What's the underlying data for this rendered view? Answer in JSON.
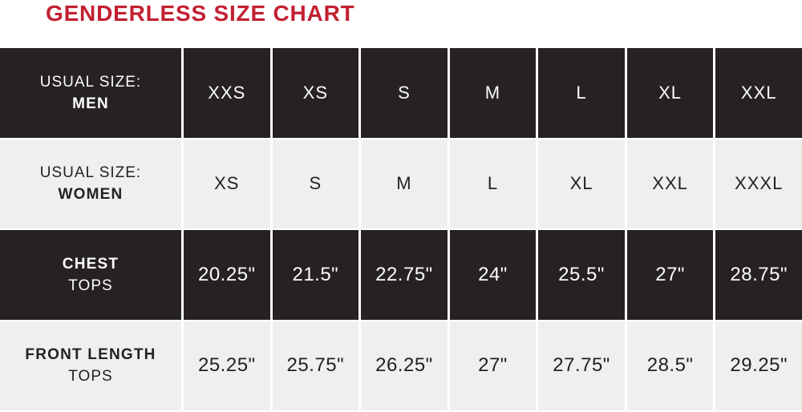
{
  "page": {
    "title": "GENDERLESS SIZE CHART"
  },
  "colors": {
    "title_red": "#c22032",
    "dark_cell": "#262223",
    "light_cell": "#f0efed",
    "gap_white": "#ffffff",
    "dark_text": "#242122",
    "light_text": "#fcfcfc"
  },
  "chart_data": {
    "type": "table",
    "title": "GENDERLESS SIZE CHART",
    "layout": {
      "row_themes": [
        "dark",
        "light",
        "dark",
        "light"
      ],
      "grid": "thin white gaps between cells",
      "legend": "none"
    },
    "rows": [
      {
        "label_line1": "USUAL SIZE:",
        "label_line2": "MEN",
        "values": [
          "XXS",
          "XS",
          "S",
          "M",
          "L",
          "XL",
          "XXL"
        ]
      },
      {
        "label_line1": "USUAL SIZE:",
        "label_line2": "WOMEN",
        "values": [
          "XS",
          "S",
          "M",
          "L",
          "XL",
          "XXL",
          "XXXL"
        ]
      },
      {
        "label_line1": "CHEST",
        "label_line2": "TOPS",
        "values": [
          "20.25\"",
          "21.5\"",
          "22.75\"",
          "24\"",
          "25.5\"",
          "27\"",
          "28.75\""
        ]
      },
      {
        "label_line1": "FRONT LENGTH",
        "label_line2": "TOPS",
        "values": [
          "25.25\"",
          "25.75\"",
          "26.25\"",
          "27\"",
          "27.75\"",
          "28.5\"",
          "29.25\""
        ]
      }
    ]
  }
}
